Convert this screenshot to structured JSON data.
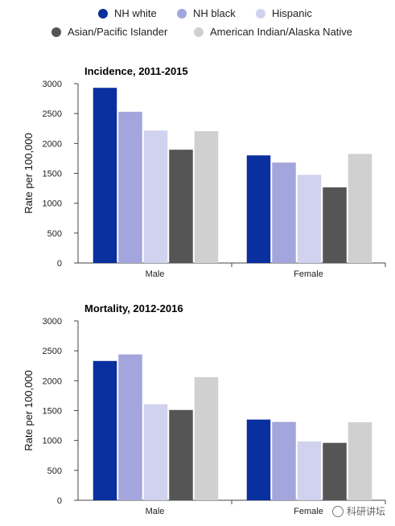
{
  "legend": [
    {
      "name": "NH white",
      "color": "#0a2f9e"
    },
    {
      "name": "NH black",
      "color": "#a3a6dc"
    },
    {
      "name": "Hispanic",
      "color": "#d0d2ee"
    },
    {
      "name": "Asian/Pacific Islander",
      "color": "#555555"
    },
    {
      "name": "American Indian/Alaska Native",
      "color": "#d0d0d0"
    }
  ],
  "chart_data": [
    {
      "type": "bar",
      "title": "Incidence, 2011-2015",
      "ylabel": "Rate per 100,000",
      "xlabel": "",
      "categories": [
        "Male",
        "Female"
      ],
      "ylim": [
        0,
        3000
      ],
      "yticks": [
        0,
        500,
        1000,
        1500,
        2000,
        2500,
        3000
      ],
      "series": [
        {
          "name": "NH white",
          "values": [
            2930,
            1800
          ]
        },
        {
          "name": "NH black",
          "values": [
            2530,
            1680
          ]
        },
        {
          "name": "Hispanic",
          "values": [
            2215,
            1475
          ]
        },
        {
          "name": "Asian/Pacific Islander",
          "values": [
            1895,
            1265
          ]
        },
        {
          "name": "American Indian/Alaska Native",
          "values": [
            2205,
            1825
          ]
        }
      ]
    },
    {
      "type": "bar",
      "title": "Mortality, 2012-2016",
      "ylabel": "Rate per 100,000",
      "xlabel": "",
      "categories": [
        "Male",
        "Female"
      ],
      "ylim": [
        0,
        3000
      ],
      "yticks": [
        0,
        500,
        1000,
        1500,
        2000,
        2500,
        3000
      ],
      "series": [
        {
          "name": "NH white",
          "values": [
            2330,
            1350
          ]
        },
        {
          "name": "NH black",
          "values": [
            2440,
            1310
          ]
        },
        {
          "name": "Hispanic",
          "values": [
            1605,
            985
          ]
        },
        {
          "name": "Asian/Pacific Islander",
          "values": [
            1510,
            960
          ]
        },
        {
          "name": "American Indian/Alaska Native",
          "values": [
            2060,
            1305
          ]
        }
      ]
    }
  ],
  "watermark": {
    "text": "科研讲坛"
  }
}
